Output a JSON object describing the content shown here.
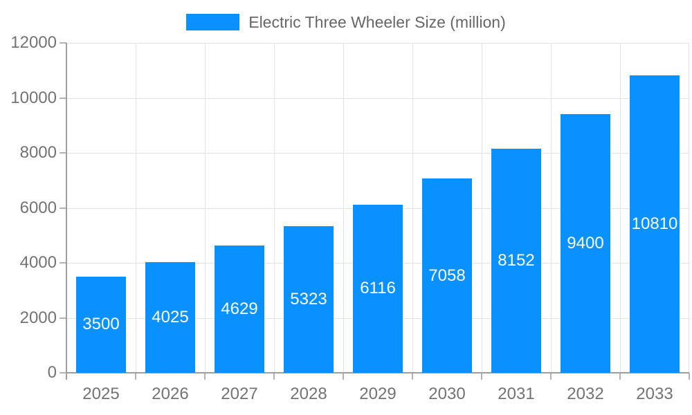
{
  "chart_data": {
    "type": "bar",
    "title": "Electric Three Wheeler Size (million)",
    "categories": [
      "2025",
      "2026",
      "2027",
      "2028",
      "2029",
      "2030",
      "2031",
      "2032",
      "2033"
    ],
    "series": [
      {
        "name": "Electric Three Wheeler Size (million)",
        "values": [
          3500,
          4025,
          4629,
          5323,
          6116,
          7058,
          8152,
          9400,
          10810
        ]
      }
    ],
    "value_labels": [
      "3500",
      "4025",
      "4629",
      "5323",
      "6116",
      "7058",
      "8152",
      "9400",
      "10810"
    ],
    "xlabel": "",
    "ylabel": "",
    "ylim": [
      0,
      12000
    ],
    "ytick_step": 2000,
    "ytick_labels": [
      "0",
      "2000",
      "4000",
      "6000",
      "8000",
      "10000",
      "12000"
    ],
    "grid": true,
    "legend_position": "top-center",
    "bar_color": "#0991ff",
    "value_label_color": "#ffffff"
  },
  "colors": {
    "background": "#ffffff",
    "axis_line": "#9e9e9e",
    "tick": "#b3b3b3",
    "gridline": "#e3e3e3",
    "plot_border": "#e0e0e0",
    "axis_text": "#737373",
    "legend_text": "#666666"
  }
}
